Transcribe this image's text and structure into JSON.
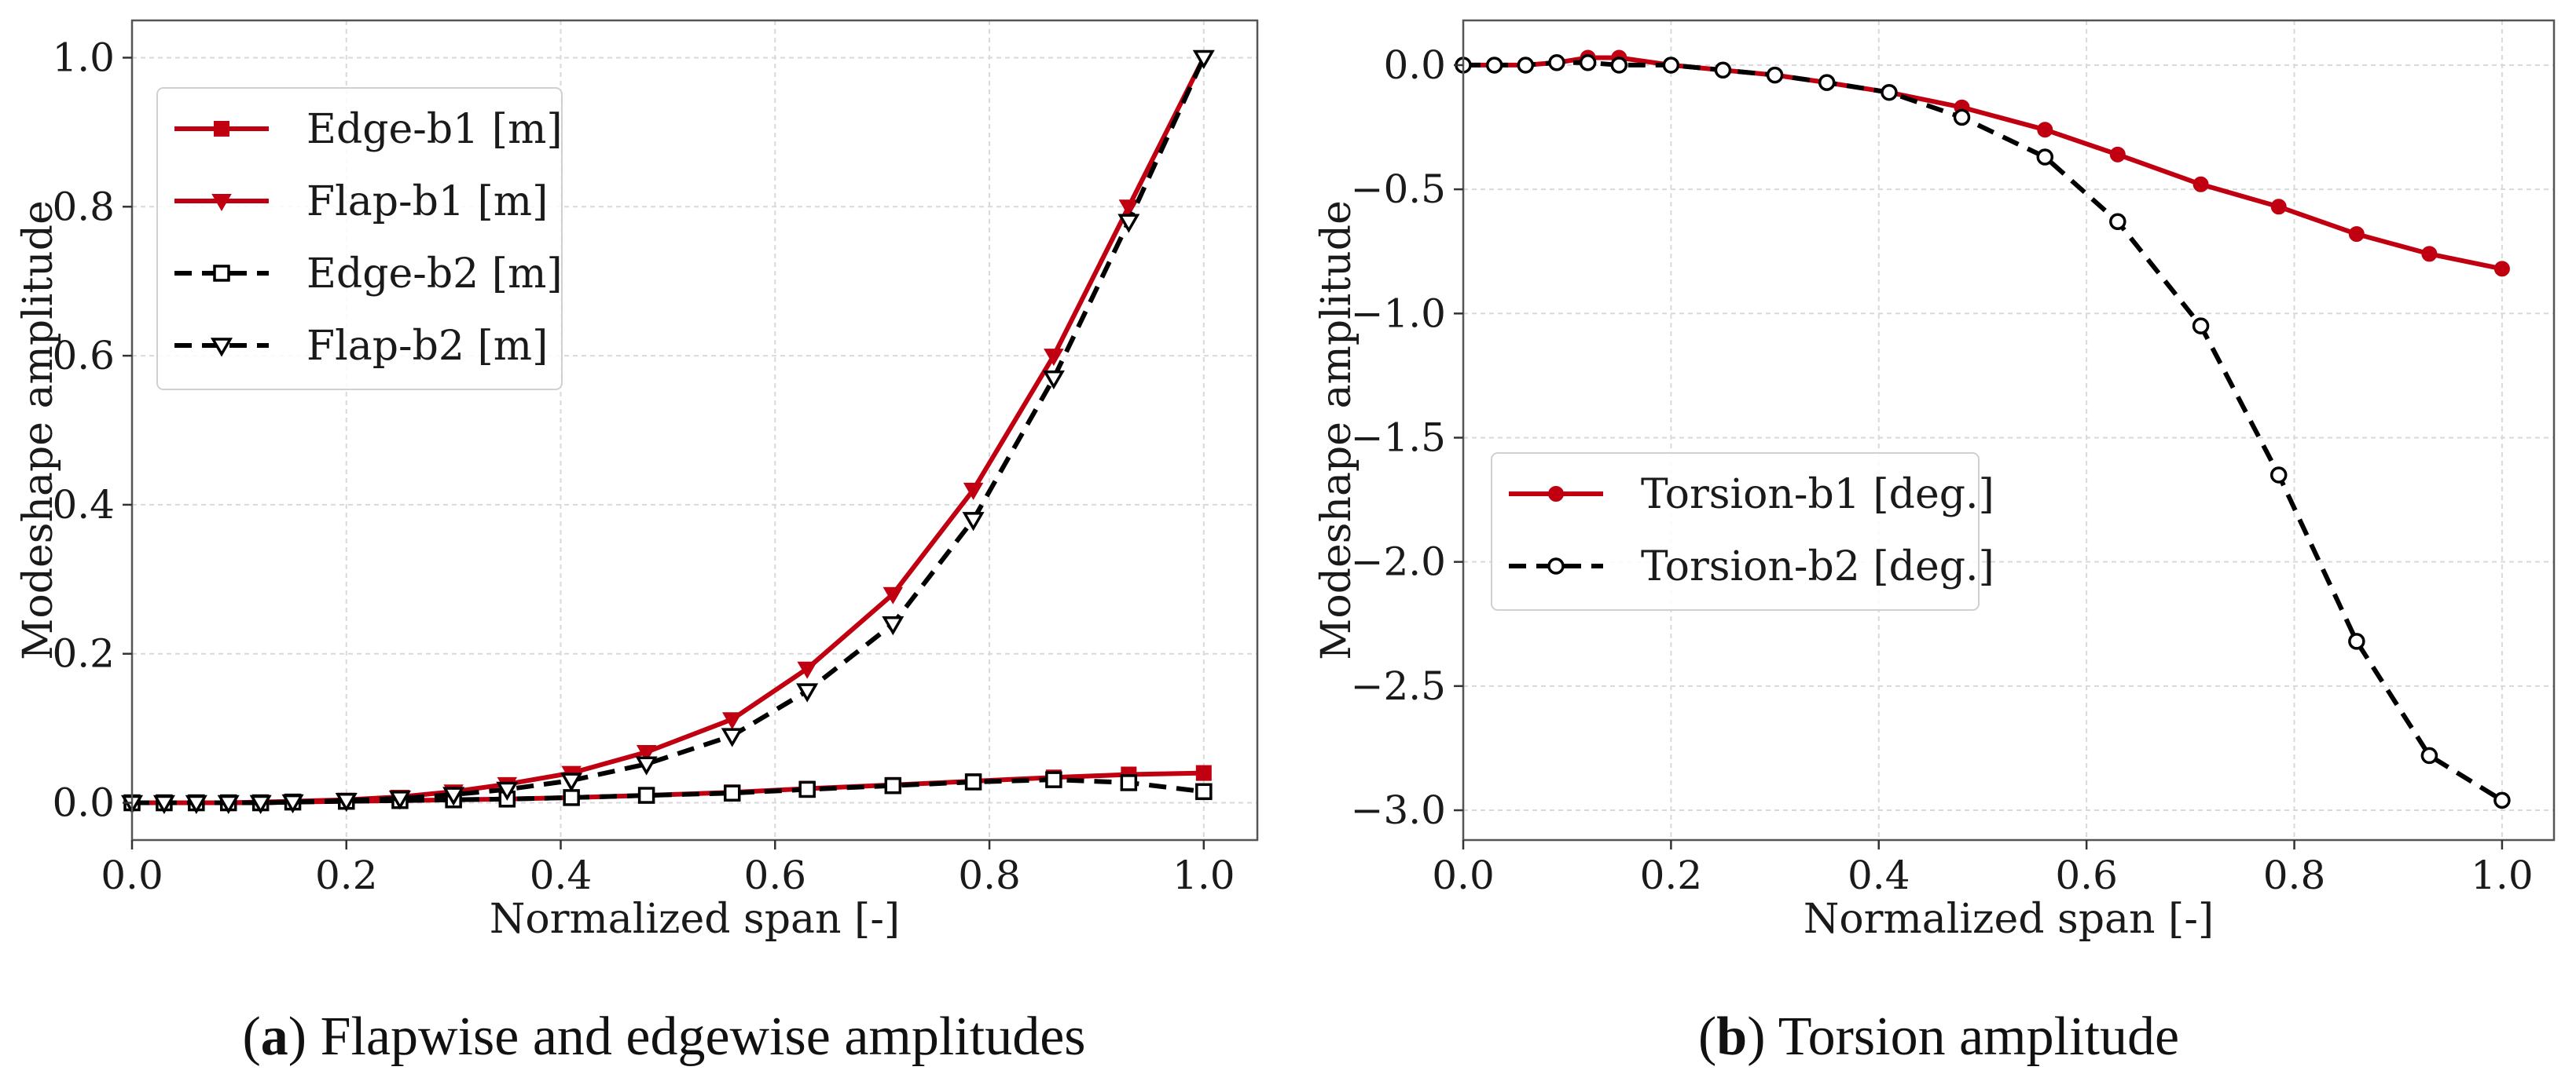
{
  "chart_data": [
    {
      "type": "line",
      "panel": "a",
      "caption_letter": "a",
      "caption_text": " Flapwise and edgewise amplitudes",
      "xlabel": "Normalized span [-]",
      "ylabel": "Modeshape amplitude",
      "xlim": [
        0.0,
        1.05
      ],
      "ylim": [
        -0.05,
        1.05
      ],
      "xticks": [
        0.0,
        0.2,
        0.4,
        0.6,
        0.8,
        1.0
      ],
      "xtick_labels": [
        "0.0",
        "0.2",
        "0.4",
        "0.6",
        "0.8",
        "1.0"
      ],
      "yticks": [
        0.0,
        0.2,
        0.4,
        0.6,
        0.8,
        1.0
      ],
      "ytick_labels": [
        "0.0",
        "0.2",
        "0.4",
        "0.6",
        "0.8",
        "1.0"
      ],
      "grid": true,
      "legend_position": "upper-left",
      "series": [
        {
          "name": "Edge-b1 [m]",
          "color": "#c00010",
          "dash": "solid",
          "marker": "square-filled",
          "x": [
            0.0,
            0.03,
            0.06,
            0.09,
            0.12,
            0.15,
            0.2,
            0.25,
            0.3,
            0.35,
            0.41,
            0.48,
            0.56,
            0.63,
            0.71,
            0.785,
            0.86,
            0.93,
            1.0
          ],
          "y": [
            0.0,
            0.0,
            0.0,
            0.0,
            0.0,
            0.001,
            0.002,
            0.003,
            0.004,
            0.005,
            0.007,
            0.01,
            0.014,
            0.019,
            0.024,
            0.029,
            0.034,
            0.038,
            0.04
          ]
        },
        {
          "name": "Flap-b1 [m]",
          "color": "#c00010",
          "dash": "solid",
          "marker": "triangle-down-filled",
          "x": [
            0.0,
            0.03,
            0.06,
            0.09,
            0.12,
            0.15,
            0.2,
            0.25,
            0.3,
            0.35,
            0.41,
            0.48,
            0.56,
            0.63,
            0.71,
            0.785,
            0.86,
            0.93,
            1.0
          ],
          "y": [
            0.0,
            0.0,
            0.0,
            0.0,
            0.001,
            0.002,
            0.004,
            0.008,
            0.015,
            0.025,
            0.04,
            0.068,
            0.112,
            0.18,
            0.28,
            0.42,
            0.6,
            0.8,
            1.0
          ]
        },
        {
          "name": "Edge-b2 [m]",
          "color": "#000000",
          "dash": "dashed",
          "marker": "square-open",
          "x": [
            0.0,
            0.03,
            0.06,
            0.09,
            0.12,
            0.15,
            0.2,
            0.25,
            0.3,
            0.35,
            0.41,
            0.48,
            0.56,
            0.63,
            0.71,
            0.785,
            0.86,
            0.93,
            1.0
          ],
          "y": [
            0.0,
            0.0,
            0.0,
            0.0,
            0.0,
            0.001,
            0.002,
            0.003,
            0.004,
            0.005,
            0.007,
            0.01,
            0.013,
            0.018,
            0.023,
            0.028,
            0.031,
            0.027,
            0.015
          ]
        },
        {
          "name": "Flap-b2 [m]",
          "color": "#000000",
          "dash": "dashed",
          "marker": "triangle-down-open",
          "x": [
            0.0,
            0.03,
            0.06,
            0.09,
            0.12,
            0.15,
            0.2,
            0.25,
            0.3,
            0.35,
            0.41,
            0.48,
            0.56,
            0.63,
            0.71,
            0.785,
            0.86,
            0.93,
            1.0
          ],
          "y": [
            0.0,
            0.0,
            0.0,
            0.0,
            0.0,
            0.001,
            0.003,
            0.006,
            0.011,
            0.018,
            0.03,
            0.052,
            0.09,
            0.15,
            0.24,
            0.38,
            0.57,
            0.78,
            1.0
          ]
        }
      ]
    },
    {
      "type": "line",
      "panel": "b",
      "caption_letter": "b",
      "caption_text": " Torsion amplitude",
      "xlabel": "Normalized span [-]",
      "ylabel": "Modeshape amplitude",
      "xlim": [
        0.0,
        1.05
      ],
      "ylim": [
        -3.12,
        0.18
      ],
      "xticks": [
        0.0,
        0.2,
        0.4,
        0.6,
        0.8,
        1.0
      ],
      "xtick_labels": [
        "0.0",
        "0.2",
        "0.4",
        "0.6",
        "0.8",
        "1.0"
      ],
      "yticks": [
        0.0,
        -0.5,
        -1.0,
        -1.5,
        -2.0,
        -2.5,
        -3.0
      ],
      "ytick_labels": [
        "0.0",
        "−0.5",
        "−1.0",
        "−1.5",
        "−2.0",
        "−2.5",
        "−3.0"
      ],
      "grid": true,
      "legend_position": "center-left",
      "series": [
        {
          "name": "Torsion-b1 [deg.]",
          "color": "#c00010",
          "dash": "solid",
          "marker": "circle-filled",
          "x": [
            0.0,
            0.03,
            0.06,
            0.09,
            0.12,
            0.15,
            0.2,
            0.25,
            0.3,
            0.35,
            0.41,
            0.48,
            0.56,
            0.63,
            0.71,
            0.785,
            0.86,
            0.93,
            1.0
          ],
          "y": [
            0.0,
            0.0,
            0.0,
            0.01,
            0.03,
            0.03,
            0.0,
            -0.02,
            -0.04,
            -0.07,
            -0.11,
            -0.17,
            -0.26,
            -0.36,
            -0.48,
            -0.57,
            -0.68,
            -0.76,
            -0.82
          ]
        },
        {
          "name": "Torsion-b2 [deg.]",
          "color": "#000000",
          "dash": "dashed",
          "marker": "circle-open",
          "x": [
            0.0,
            0.03,
            0.06,
            0.09,
            0.12,
            0.15,
            0.2,
            0.25,
            0.3,
            0.35,
            0.41,
            0.48,
            0.56,
            0.63,
            0.71,
            0.785,
            0.86,
            0.93,
            1.0
          ],
          "y": [
            0.0,
            0.0,
            0.0,
            0.01,
            0.01,
            0.0,
            0.0,
            -0.02,
            -0.04,
            -0.07,
            -0.11,
            -0.21,
            -0.37,
            -0.63,
            -1.05,
            -1.65,
            -2.32,
            -2.78,
            -2.96
          ]
        }
      ]
    }
  ]
}
